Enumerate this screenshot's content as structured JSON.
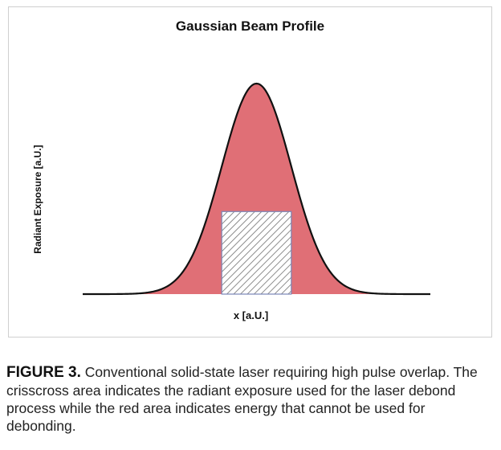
{
  "chart_data": {
    "type": "area",
    "title": "Gaussian Beam Profile",
    "xlabel": "x [a.U.]",
    "ylabel": "Radiant Exposure [a.U.]",
    "curve": "gaussian",
    "x_range": [
      -5,
      5
    ],
    "peak": 1.0,
    "sigma": 1.0,
    "usable_region": {
      "x": [
        -1.0,
        1.0
      ],
      "threshold": 0.392
    },
    "grid": false,
    "legend": "none",
    "colors": {
      "excess_energy": "#e06f76",
      "usable_region_hatch": "#6f6f6f",
      "usable_region_border": "#7a86b8",
      "curve": "#111111"
    }
  },
  "caption": {
    "label": "FIGURE 3.",
    "text": "Conventional solid-state laser requiring high pulse overlap. The crisscross area indicates the radiant exposure used for the laser debond process while the red area indicates energy that cannot be used for debonding."
  }
}
